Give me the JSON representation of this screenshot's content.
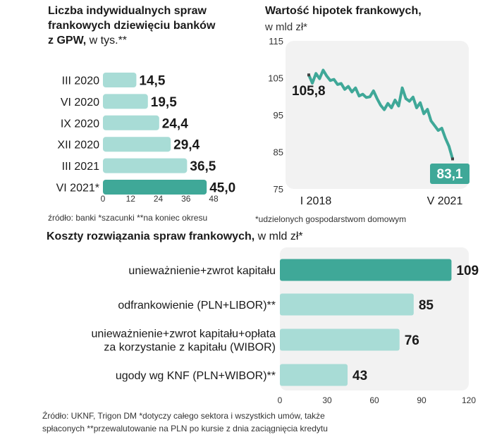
{
  "panel_left": {
    "title_lines": [
      "Liczba indywidualnych spraw",
      "frankowych dziewięciu banków"
    ],
    "title_last": "z GPW,",
    "title_unit": " w tys.**",
    "source": "źródło: banki *szacunki **na koniec okresu"
  },
  "panel_right": {
    "title": "Wartość hipotek frankowych,",
    "subtitle": "w mld zł*",
    "footnote": "*udzielonych gospodarstwom domowym"
  },
  "panel_bottom": {
    "title": "Koszty rozwiązania spraw frankowych,",
    "title_unit": " w mld zł*",
    "source_line1": "Źródło: UKNF, Trigon DM *dotyczy całego sektora i wszystkich umów, także",
    "source_line2": "spłaconych **przewalutowanie na PLN po kursie z dnia zaciągnięcia kredytu"
  },
  "colors": {
    "bar": "#a8dcd6",
    "highlight": "#3fa898",
    "line": "#3fa898",
    "plot_bg": "#f2f2f2",
    "label_bg": "#3fa898"
  },
  "chart_data": [
    {
      "type": "bar",
      "orientation": "horizontal",
      "categories": [
        "III 2020",
        "VI 2020",
        "IX 2020",
        "XII 2020",
        "III 2021",
        "VI 2021*"
      ],
      "values": [
        14.5,
        19.5,
        24.4,
        29.4,
        36.5,
        45.0
      ],
      "value_labels": [
        "14,5",
        "19,5",
        "24,4",
        "29,4",
        "36,5",
        "45,0"
      ],
      "highlight_index": 5,
      "xlim": [
        0,
        48
      ],
      "xticks": [
        "0",
        "12",
        "24",
        "36",
        "48"
      ],
      "xtick_values": [
        0,
        12,
        24,
        36,
        48
      ],
      "title": "Liczba indywidualnych spraw frankowych dziewięciu banków z GPW, w tys.**"
    },
    {
      "type": "line",
      "title": "Wartość hipotek frankowych, w mld zł*",
      "ylim": [
        75,
        115
      ],
      "yticks": [
        "115",
        "105",
        "95",
        "85",
        "75"
      ],
      "ytick_values": [
        115,
        105,
        95,
        85,
        75
      ],
      "x_labels": [
        "I 2018",
        "V 2021"
      ],
      "start_label": "105,8",
      "end_label": "83,1",
      "values": [
        105.8,
        103.6,
        106.2,
        104.8,
        107.1,
        105.5,
        104.3,
        104.6,
        103.2,
        103.5,
        101.9,
        102.7,
        101.2,
        102.3,
        100.1,
        100.6,
        99.7,
        99.9,
        101.5,
        99.4,
        97.6,
        96.4,
        98.1,
        96.9,
        99.0,
        97.4,
        102.3,
        99.4,
        98.7,
        99.8,
        96.9,
        98.3,
        95.3,
        96.5,
        93.4,
        92.1,
        90.8,
        91.4,
        88.7,
        86.5,
        83.1
      ]
    },
    {
      "type": "bar",
      "orientation": "horizontal",
      "categories": [
        [
          "unieważnienie+zwrot kapitału"
        ],
        [
          "odfrankowienie (PLN+LIBOR)**"
        ],
        [
          "unieważnienie+zwrot kapitału+opłata",
          "za korzystanie z kapitału (WIBOR)"
        ],
        [
          "ugody wg KNF (PLN+WIBOR)**"
        ]
      ],
      "values": [
        109,
        85,
        76,
        43
      ],
      "value_labels": [
        "109",
        "85",
        "76",
        "43"
      ],
      "highlight_index": 0,
      "xlim": [
        0,
        120
      ],
      "xticks": [
        "0",
        "30",
        "60",
        "90",
        "120"
      ],
      "xtick_values": [
        0,
        30,
        60,
        90,
        120
      ],
      "title": "Koszty rozwiązania spraw frankowych, w mld zł*"
    }
  ]
}
